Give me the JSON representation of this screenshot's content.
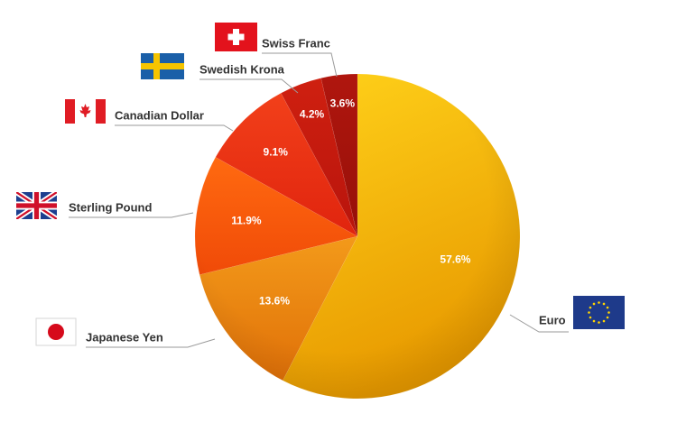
{
  "chart_data": {
    "type": "pie",
    "start": "12 o'clock, clockwise",
    "categories": [
      "Euro",
      "Japanese Yen",
      "Sterling Pound",
      "Canadian Dollar",
      "Swedish Krona",
      "Swiss Franc"
    ],
    "values": [
      57.6,
      13.6,
      11.9,
      9.1,
      4.2,
      3.6
    ],
    "value_labels": [
      "57.6%",
      "13.6%",
      "11.9%",
      "9.1%",
      "4.2%",
      "3.6%"
    ],
    "colors": [
      "#f1b000",
      "#ef8a10",
      "#f6500c",
      "#ea2c14",
      "#c4180e",
      "#a5130c"
    ],
    "flag_icons": [
      "eu-flag-icon",
      "japan-flag-icon",
      "uk-flag-icon",
      "canada-flag-icon",
      "sweden-flag-icon",
      "switzerland-flag-icon"
    ],
    "title": "",
    "legend": "none"
  }
}
